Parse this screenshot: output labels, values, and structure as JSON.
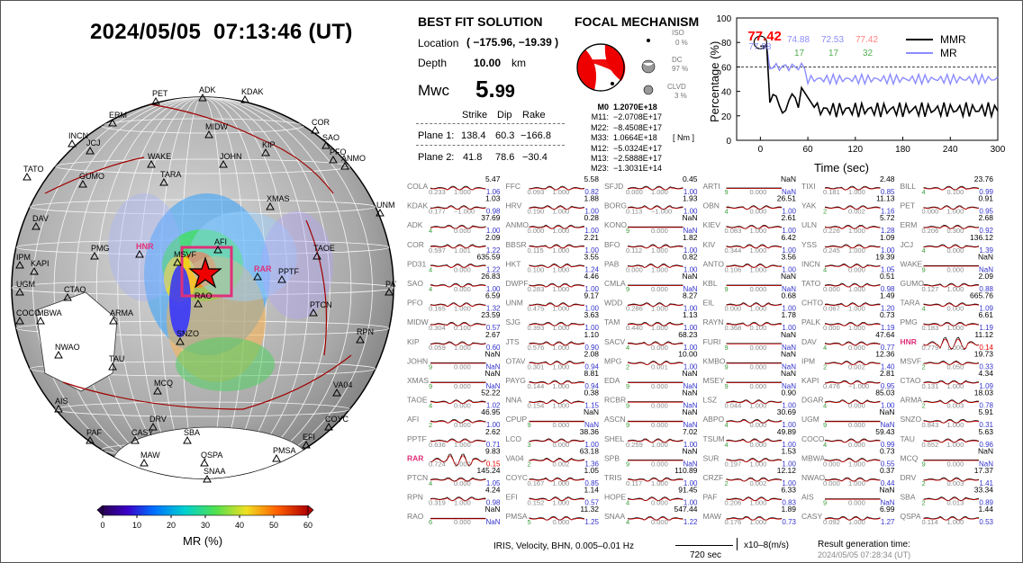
{
  "header": {
    "datetime": "2024/05/05  07:13:46 (UT)"
  },
  "solution": {
    "title": "BEST FIT SOLUTION",
    "location_label": "Location",
    "location_value": "( −175.96,  −19.39 )",
    "depth_label": "Depth",
    "depth_value": "10.00",
    "depth_unit": "km",
    "mw_label": "Mwc",
    "mw_value_int": "5.",
    "mw_value_dec": "99",
    "col_strike": "Strike",
    "col_dip": "Dip",
    "col_rake": "Rake",
    "plane1_label": "Plane 1:",
    "plane1_strike": "138.4",
    "plane1_dip": "60.3",
    "plane1_rake": "−166.8",
    "plane2_label": "Plane 2:",
    "plane2_strike": "41.8",
    "plane2_dip": "78.6",
    "plane2_rake": "−30.4"
  },
  "mechanism": {
    "title": "FOCAL MECHANISM",
    "iso_label": "ISO",
    "iso_value": "0 %",
    "dc_label": "DC",
    "dc_value": "97 %",
    "clvd_label": "CLVD",
    "clvd_value": "3 %",
    "nm_unit": "[ Nm ]",
    "tensor": [
      {
        "k": "M0",
        "v": "1.2070E+18"
      },
      {
        "k": "M11:",
        "v": "−2.0708E+17"
      },
      {
        "k": "M22:",
        "v": "−8.4508E+17"
      },
      {
        "k": "M33:",
        "v": "1.0664E+18"
      },
      {
        "k": "M12:",
        "v": "−5.0324E+17"
      },
      {
        "k": "M13:",
        "v": "−2.5888E+17"
      },
      {
        "k": "M23:",
        "v": "−1.3031E+14"
      }
    ]
  },
  "mr_plot": {
    "ylabel": "Percentage (%)",
    "xlabel": "Time (sec)",
    "yticks": [
      "0",
      "20",
      "40",
      "60",
      "80",
      "100"
    ],
    "xticks": [
      "0",
      "60",
      "120",
      "180",
      "240",
      "300"
    ],
    "peak_label": "77.42",
    "peak_sub": "77.98",
    "mr_vals": [
      "74.88",
      "72.53",
      "77.42"
    ],
    "counts": [
      "17",
      "17",
      "32"
    ],
    "legend_mmr": "MMR",
    "legend_mr": "MR",
    "colors": {
      "mmr": "#000000",
      "mr": "#8c8cff",
      "peak": "#ff0000"
    }
  },
  "map": {
    "colorbar_ticks": [
      "0",
      "10",
      "20",
      "30",
      "40",
      "50",
      "60"
    ],
    "colorbar_label": "MR (%)",
    "stations": [
      {
        "n": "PET",
        "c": "#000"
      },
      {
        "n": "ADK",
        "c": "#000"
      },
      {
        "n": "KDAK",
        "c": "#000"
      },
      {
        "n": "ERM",
        "c": "#000"
      },
      {
        "n": "MIDW",
        "c": "#000"
      },
      {
        "n": "COR",
        "c": "#000"
      },
      {
        "n": "INCN",
        "c": "#000"
      },
      {
        "n": "JCJ",
        "c": "#000"
      },
      {
        "n": "SAO",
        "c": "#000"
      },
      {
        "n": "KIP",
        "c": "#000"
      },
      {
        "n": "PFO",
        "c": "#000"
      },
      {
        "n": "ANMO",
        "c": "#000"
      },
      {
        "n": "WAKE",
        "c": "#000"
      },
      {
        "n": "JOHN",
        "c": "#000"
      },
      {
        "n": "TATO",
        "c": "#000"
      },
      {
        "n": "GUMO",
        "c": "#000"
      },
      {
        "n": "TARA",
        "c": "#000"
      },
      {
        "n": "XMAS",
        "c": "#000"
      },
      {
        "n": "UNM",
        "c": "#000"
      },
      {
        "n": "DAV",
        "c": "#000"
      },
      {
        "n": "HNR",
        "c": "#e0307a"
      },
      {
        "n": "AFI",
        "c": "#000"
      },
      {
        "n": "TAOE",
        "c": "#000"
      },
      {
        "n": "PMG",
        "c": "#000"
      },
      {
        "n": "MSVF",
        "c": "#000"
      },
      {
        "n": "RAR",
        "c": "#e0307a"
      },
      {
        "n": "PPTF",
        "c": "#000"
      },
      {
        "n": "IPM",
        "c": "#000"
      },
      {
        "n": "KAPI",
        "c": "#000"
      },
      {
        "n": "PAYG",
        "c": "#000"
      },
      {
        "n": "UGM",
        "c": "#000"
      },
      {
        "n": "CTAO",
        "c": "#000"
      },
      {
        "n": "RAO",
        "c": "#000"
      },
      {
        "n": "COCO",
        "c": "#000"
      },
      {
        "n": "MBWA",
        "c": "#000"
      },
      {
        "n": "ARMA",
        "c": "#000"
      },
      {
        "n": "PTCN",
        "c": "#000"
      },
      {
        "n": "RPN",
        "c": "#000"
      },
      {
        "n": "SNZO",
        "c": "#000"
      },
      {
        "n": "NWAO",
        "c": "#000"
      },
      {
        "n": "TAU",
        "c": "#000"
      },
      {
        "n": "MCQ",
        "c": "#000"
      },
      {
        "n": "VA04",
        "c": "#000"
      },
      {
        "n": "AIS",
        "c": "#000"
      },
      {
        "n": "DRV",
        "c": "#000"
      },
      {
        "n": "COYC",
        "c": "#000"
      },
      {
        "n": "PAF",
        "c": "#000"
      },
      {
        "n": "CASY",
        "c": "#000"
      },
      {
        "n": "SBA",
        "c": "#000"
      },
      {
        "n": "EFI",
        "c": "#000"
      },
      {
        "n": "MAW",
        "c": "#000"
      },
      {
        "n": "QSPA",
        "c": "#000"
      },
      {
        "n": "PMSA",
        "c": "#000"
      },
      {
        "n": "SNAA",
        "c": "#000"
      }
    ]
  },
  "stations_grid": [
    [
      {
        "n": "COLA",
        "v": "5.47",
        "a": "0.233",
        "b": "1.000",
        "r": "1.06"
      },
      {
        "n": "KDAK",
        "v": "1.03",
        "a": "0.177",
        "b": "−1.000",
        "r": "0.98"
      },
      {
        "n": "ADK",
        "v": "37.69",
        "a": "4",
        "b": "0.000",
        "r": "1.00"
      },
      {
        "n": "COR",
        "v": "2.09",
        "a": "0.597",
        "b": "1.001",
        "r": "1.22"
      },
      {
        "n": "PD31",
        "v": "635.59",
        "a": "4",
        "b": "0.000",
        "r": "1.22"
      },
      {
        "n": "SAO",
        "v": "26.83",
        "a": "4",
        "b": "0.000",
        "r": "1.00"
      },
      {
        "n": "PFO",
        "v": "6.59",
        "a": "0.165",
        "b": "1.000",
        "r": "1.32"
      },
      {
        "n": "MIDW",
        "v": "23.59",
        "a": "0.304",
        "b": "0.100",
        "r": "0.57"
      },
      {
        "n": "KIP",
        "v": "2.67",
        "a": "0.059",
        "b": "1.000",
        "r": "0.60"
      },
      {
        "n": "JOHN",
        "v": "NaN",
        "a": "9",
        "b": "0.000",
        "r": "NaN"
      },
      {
        "n": "XMAS",
        "v": "NaN",
        "a": "9",
        "b": "0.000",
        "r": "NaN"
      },
      {
        "n": "TAOE",
        "v": "52.22",
        "a": "4",
        "b": "0.000",
        "r": "1.02"
      },
      {
        "n": "AFI",
        "v": "46.95",
        "a": "2",
        "b": "0.000",
        "r": "1.00"
      },
      {
        "n": "PPTF",
        "v": "2.62",
        "a": "0.636",
        "b": "1.000",
        "r": "0.71"
      },
      {
        "n": "RAR",
        "v": "9.83",
        "a": "0.724",
        "b": "1.000",
        "r": "0.15",
        "hl": true
      },
      {
        "n": "PTCN",
        "v": "145.24",
        "a": "4",
        "b": "0.000",
        "r": "1.05"
      },
      {
        "n": "RPN",
        "v": "4.24",
        "a": "0.319",
        "b": "1.000",
        "r": "0.98"
      },
      {
        "n": "RAO",
        "v": "NaN",
        "a": "6",
        "b": "0.000",
        "r": "NaN"
      }
    ],
    [
      {
        "n": "FFC",
        "v": "5.58",
        "a": "0.093",
        "b": "1.000",
        "r": "0.82"
      },
      {
        "n": "HRV",
        "v": "1.88",
        "a": "0.190",
        "b": "1.000",
        "r": "1.00"
      },
      {
        "n": "ANMO",
        "v": "0.28",
        "a": "0.000",
        "b": "1.000",
        "r": "1.00"
      },
      {
        "n": "BBSR",
        "v": "2.21",
        "a": "0.115",
        "b": "1.000",
        "r": "1.00"
      },
      {
        "n": "HKT",
        "v": "3.55",
        "a": "0.100",
        "b": "1.000",
        "r": "1.24"
      },
      {
        "n": "DWPF",
        "v": "4.46",
        "a": "0.283",
        "b": "1.000",
        "r": "1.00"
      },
      {
        "n": "UNM",
        "v": "9.17",
        "a": "0.475",
        "b": "1.000",
        "r": "1.00"
      },
      {
        "n": "SJG",
        "v": "3.63",
        "a": "0.393",
        "b": "1.000",
        "r": "1.00"
      },
      {
        "n": "JTS",
        "v": "1.10",
        "a": "0.576",
        "b": "1.000",
        "r": "0.90"
      },
      {
        "n": "OTAV",
        "v": "2.08",
        "a": "0.301",
        "b": "1.000",
        "r": "0.94"
      },
      {
        "n": "PAYG",
        "v": "8.81",
        "a": "0.144",
        "b": "1.000",
        "r": "0.94"
      },
      {
        "n": "NNA",
        "v": "0.38",
        "a": "0.154",
        "b": "1.000",
        "r": "1.15"
      },
      {
        "n": "CPUP",
        "v": "NaN",
        "a": "9",
        "b": "0.000",
        "r": "NaN"
      },
      {
        "n": "LCO",
        "v": "38.36",
        "a": "3",
        "b": "0.000",
        "r": "1.00"
      },
      {
        "n": "VA04",
        "v": "63.18",
        "a": "2",
        "b": "0.002",
        "r": "1.36"
      },
      {
        "n": "COYC",
        "v": "1.05",
        "a": "0.167",
        "b": "1.000",
        "r": "0.85"
      },
      {
        "n": "EFI",
        "v": "1.14",
        "a": "0.152",
        "b": "1.000",
        "r": "0.57"
      },
      {
        "n": "PMSA",
        "v": "11.32",
        "a": "5",
        "b": "0.000",
        "r": "1.25"
      }
    ],
    [
      {
        "n": "SFJD",
        "v": "0.45",
        "a": "0.000",
        "b": "1.000",
        "r": "1.00"
      },
      {
        "n": "BORG",
        "v": "1.93",
        "a": "0.113",
        "b": "−1.000",
        "r": "1.00"
      },
      {
        "n": "KONO",
        "v": "NaN",
        "a": "9",
        "b": "0.000",
        "r": "NaN"
      },
      {
        "n": "BFO",
        "v": "1.82",
        "a": "0.112",
        "b": "1.000",
        "r": "1.00"
      },
      {
        "n": "PAB",
        "v": "0.82",
        "a": "0.000",
        "b": "1.000",
        "r": "1.00"
      },
      {
        "n": "CMLA",
        "v": "NaN",
        "a": "9",
        "b": "0.000",
        "r": "NaN"
      },
      {
        "n": "WDD",
        "v": "8.27",
        "a": "0.286",
        "b": "1.000",
        "r": "1.00"
      },
      {
        "n": "TAM",
        "v": "1.13",
        "a": "0.440",
        "b": "1.000",
        "r": "1.00"
      },
      {
        "n": "SACV",
        "v": "68.23",
        "a": "4",
        "b": "0.000",
        "r": "1.00"
      },
      {
        "n": "MPG",
        "v": "10.00",
        "a": "2",
        "b": "0.001",
        "r": "1.00"
      },
      {
        "n": "EDA",
        "v": "NaN",
        "a": "9",
        "b": "0.000",
        "r": "NaN"
      },
      {
        "n": "RCBR",
        "v": "NaN",
        "a": "9",
        "b": "0.000",
        "r": "NaN"
      },
      {
        "n": "ASCN",
        "v": "NaN",
        "a": "9",
        "b": "0.000",
        "r": "NaN"
      },
      {
        "n": "SHEL",
        "v": "7.02",
        "a": "0.259",
        "b": "1.000",
        "r": "1.00"
      },
      {
        "n": "SPB",
        "v": "NaN",
        "a": "9",
        "b": "0.000",
        "r": "NaN"
      },
      {
        "n": "TRIS",
        "v": "110.89",
        "a": "0.117",
        "b": "1.000",
        "r": "1.00"
      },
      {
        "n": "HOPE",
        "v": "91.45",
        "a": "4",
        "b": "0.000",
        "r": "1.00"
      },
      {
        "n": "SNAA",
        "v": "547.44",
        "a": "4",
        "b": "0.000",
        "r": "1.22"
      }
    ],
    [
      {
        "n": "ARTI",
        "v": "NaN",
        "a": "9",
        "b": "0.000",
        "r": "NaN"
      },
      {
        "n": "OBN",
        "v": "26.51",
        "a": "4",
        "b": "0.000",
        "r": "1.00"
      },
      {
        "n": "KIEV",
        "v": "2.61",
        "a": "0.083",
        "b": "1.000",
        "r": "1.00"
      },
      {
        "n": "KIV",
        "v": "6.42",
        "a": "0.344",
        "b": "1.000",
        "r": "1.00"
      },
      {
        "n": "ANTO",
        "v": "3.56",
        "a": "0.106",
        "b": "1.000",
        "r": "1.00"
      },
      {
        "n": "KBL",
        "v": "NaN",
        "a": "9",
        "b": "0.000",
        "r": "NaN"
      },
      {
        "n": "EIL",
        "v": "0.68",
        "a": "0.000",
        "b": "1.000",
        "r": "1.00"
      },
      {
        "n": "RAYN",
        "v": "1.78",
        "a": "0.368",
        "b": "0.100",
        "r": "1.00"
      },
      {
        "n": "FURI",
        "v": "NaN",
        "a": "9",
        "b": "0.000",
        "r": "NaN"
      },
      {
        "n": "KMBO",
        "v": "NaN",
        "a": "9",
        "b": "0.000",
        "r": "NaN"
      },
      {
        "n": "MSEY",
        "v": "NaN",
        "a": "9",
        "b": "0.000",
        "r": "NaN"
      },
      {
        "n": "LSZ",
        "v": "0.90",
        "a": "0.044",
        "b": "1.000",
        "r": "1.00"
      },
      {
        "n": "ABPO",
        "v": "30.69",
        "a": "4",
        "b": "0.000",
        "r": "1.00"
      },
      {
        "n": "TSUM",
        "v": "49.89",
        "a": "4",
        "b": "0.000",
        "r": "1.00"
      },
      {
        "n": "SUR",
        "v": "1.53",
        "a": "0.197",
        "b": "1.000",
        "r": "1.00"
      },
      {
        "n": "CRZF",
        "v": "12.12",
        "a": "2",
        "b": "0.002",
        "r": "1.00"
      },
      {
        "n": "PAF",
        "v": "6.33",
        "a": "0.206",
        "b": "1.000",
        "r": "0.83"
      },
      {
        "n": "MAW",
        "v": "1.89",
        "a": "0.176",
        "b": "1.000",
        "r": "0.73"
      }
    ],
    [
      {
        "n": "TIXI",
        "v": "2.48",
        "a": "0.181",
        "b": "1.000",
        "r": "0.85"
      },
      {
        "n": "YAK",
        "v": "11.13",
        "a": "2",
        "b": "0.002",
        "r": "1.16"
      },
      {
        "n": "ULN",
        "v": "5.72",
        "a": "0.226",
        "b": "1.000",
        "r": "1.28"
      },
      {
        "n": "YSS",
        "v": "1.09",
        "a": "0.245",
        "b": "1.000",
        "r": "1.00"
      },
      {
        "n": "INCN",
        "v": "19.39",
        "a": "4",
        "b": "0.000",
        "r": "1.05"
      },
      {
        "n": "TATO",
        "v": "0.51",
        "a": "0.000",
        "b": "1.000",
        "r": "0.98"
      },
      {
        "n": "CHTO",
        "v": "1.49",
        "a": "0.067",
        "b": "1.000",
        "r": "1.20"
      },
      {
        "n": "PALK",
        "v": "0.73",
        "a": "0.000",
        "b": "1.000",
        "r": "1.19"
      },
      {
        "n": "DAV",
        "v": "47.64",
        "a": "4",
        "b": "0.000",
        "r": "0.77"
      },
      {
        "n": "IPM",
        "v": "12.36",
        "a": "2",
        "b": "0.002",
        "r": "1.40"
      },
      {
        "n": "KAPI",
        "v": "2.81",
        "a": "0.476",
        "b": "−1.000",
        "r": "0.95"
      },
      {
        "n": "DGAR",
        "v": "85.03",
        "a": "4",
        "b": "0.000",
        "r": "1.00"
      },
      {
        "n": "UGM",
        "v": "NaN",
        "a": "9",
        "b": "0.000",
        "r": "NaN"
      },
      {
        "n": "COCO",
        "v": "59.43",
        "a": "4",
        "b": "0.000",
        "r": "0.99"
      },
      {
        "n": "MBWA",
        "v": "0.73",
        "a": "0.000",
        "b": "1.000",
        "r": "0.55"
      },
      {
        "n": "NWAO",
        "v": "0.37",
        "a": "0.000",
        "b": "1.000",
        "r": "0.44"
      },
      {
        "n": "AIS",
        "v": "NaN",
        "a": "9",
        "b": "0.000",
        "r": "NaN"
      },
      {
        "n": "CASY",
        "v": "6.99",
        "a": "0.092",
        "b": "1.000",
        "r": "1.27"
      }
    ],
    [
      {
        "n": "BILL",
        "v": "23.76",
        "a": "4",
        "b": "0.100",
        "r": "0.99"
      },
      {
        "n": "PET",
        "v": "0.91",
        "a": "0.000",
        "b": "1.000",
        "r": "0.95"
      },
      {
        "n": "ERM",
        "v": "2.68",
        "a": "0.206",
        "b": "0.300",
        "r": "0.92"
      },
      {
        "n": "JCJ",
        "v": "136.12",
        "a": "4",
        "b": "0.000",
        "r": "1.39"
      },
      {
        "n": "WAKE",
        "v": "NaN",
        "a": "9",
        "b": "0.000",
        "r": "NaN"
      },
      {
        "n": "GUMO",
        "v": "2.09",
        "a": "0.127",
        "b": "1.000",
        "r": "0.88"
      },
      {
        "n": "TARA",
        "v": "665.76",
        "a": "4",
        "b": "0.000",
        "r": "1.09"
      },
      {
        "n": "PMG",
        "v": "6.61",
        "a": "0.183",
        "b": "1.000",
        "r": "1.19"
      },
      {
        "n": "HNR",
        "v": "11.12",
        "a": "0.779",
        "b": "1.000",
        "r": "0.14",
        "hl": true
      },
      {
        "n": "MSVF",
        "v": "19.73",
        "a": "2",
        "b": "0.050",
        "r": "0.33"
      },
      {
        "n": "CTAO",
        "v": "4.34",
        "a": "0.131",
        "b": "1.000",
        "r": "1.09"
      },
      {
        "n": "ARMA",
        "v": "18.03",
        "a": "2",
        "b": "0.003",
        "r": "0.78"
      },
      {
        "n": "SNZO",
        "v": "5.91",
        "a": "0.843",
        "b": "1.000",
        "r": "0.31"
      },
      {
        "n": "TAU",
        "v": "5.63",
        "a": "0.652",
        "b": "1.000",
        "r": "0.96"
      },
      {
        "n": "MCQ",
        "v": "NaN",
        "a": "9",
        "b": "0.000",
        "r": "NaN"
      },
      {
        "n": "DRV",
        "v": "17.37",
        "a": "2",
        "b": "0.003",
        "r": "1.41"
      },
      {
        "n": "SBA",
        "v": "33.34",
        "a": "2",
        "b": "0.013",
        "r": "0.89"
      },
      {
        "n": "QSPA",
        "v": "1.44",
        "a": "0.114",
        "b": "1.000",
        "r": "0.53"
      }
    ]
  ],
  "footer": {
    "channel": "IRIS, Velocity,   BHN,  0.005–0.01 Hz",
    "scale_label": "720 sec",
    "amp_unit": "x10–8(m/s)",
    "result_label": "Result generation time:",
    "result_time": "2024/05/05 07:28:34 (UT)"
  }
}
